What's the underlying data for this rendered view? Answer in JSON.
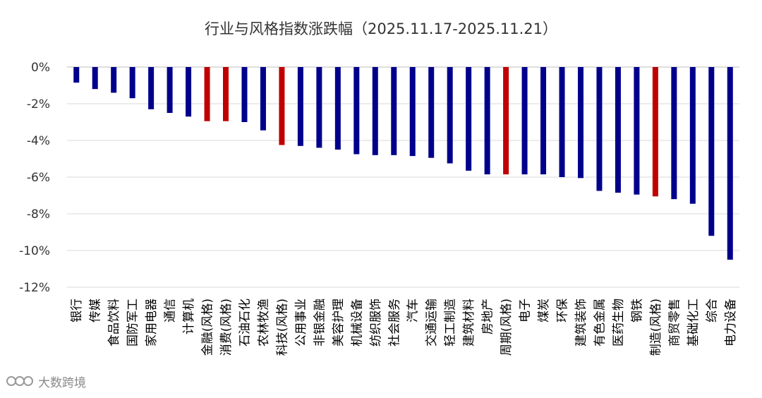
{
  "chart_data": {
    "type": "bar",
    "title": "行业与风格指数涨跌幅（2025.11.17-2025.11.21）",
    "xlabel": "",
    "ylabel": "",
    "ylim": [
      -12,
      0
    ],
    "yticks": [
      0,
      -2,
      -4,
      -6,
      -8,
      -10,
      -12
    ],
    "ytick_labels": [
      "0%",
      "-2%",
      "-4%",
      "-6%",
      "-8%",
      "-10%",
      "-12%"
    ],
    "grid": true,
    "legend": "none",
    "colors": {
      "industry": "#00008B",
      "style": "#C00000"
    },
    "categories": [
      "银行",
      "传媒",
      "食品饮料",
      "国防军工",
      "家用电器",
      "通信",
      "计算机",
      "金融(风格)",
      "消费(风格)",
      "石油石化",
      "农林牧渔",
      "科技(风格)",
      "公用事业",
      "非银金融",
      "美容护理",
      "机械设备",
      "纺织服饰",
      "社会服务",
      "汽车",
      "交通运输",
      "轻工制造",
      "建筑材料",
      "房地产",
      "周期(风格)",
      "电子",
      "煤炭",
      "环保",
      "建筑装饰",
      "有色金属",
      "医药生物",
      "钢铁",
      "制造(风格)",
      "商贸零售",
      "基础化工",
      "综合",
      "电力设备"
    ],
    "values": [
      -0.85,
      -1.2,
      -1.4,
      -1.7,
      -2.3,
      -2.5,
      -2.7,
      -2.95,
      -2.95,
      -3.0,
      -3.45,
      -4.25,
      -4.3,
      -4.4,
      -4.5,
      -4.75,
      -4.8,
      -4.8,
      -4.85,
      -4.95,
      -5.25,
      -5.65,
      -5.85,
      -5.85,
      -5.85,
      -5.85,
      -6.0,
      -6.05,
      -6.75,
      -6.85,
      -6.95,
      -7.05,
      -7.2,
      -7.45,
      -9.2,
      -10.5
    ],
    "is_style": [
      false,
      false,
      false,
      false,
      false,
      false,
      false,
      true,
      true,
      false,
      false,
      true,
      false,
      false,
      false,
      false,
      false,
      false,
      false,
      false,
      false,
      false,
      false,
      true,
      false,
      false,
      false,
      false,
      false,
      false,
      false,
      true,
      false,
      false,
      false,
      false
    ]
  },
  "watermark": {
    "text": "大数跨境"
  }
}
